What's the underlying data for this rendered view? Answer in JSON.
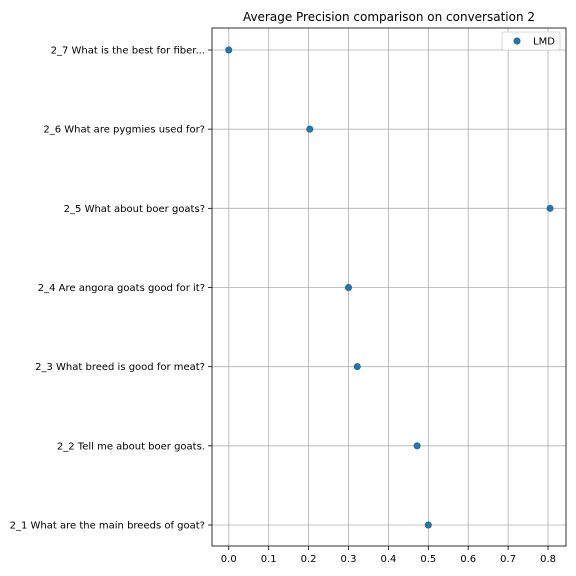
{
  "chart_data": {
    "type": "scatter",
    "title": "Average Precision comparison on conversation 2",
    "xlabel": "",
    "ylabel": "",
    "xlim": [
      -0.042,
      0.845
    ],
    "xticks": [
      0.0,
      0.1,
      0.2,
      0.3,
      0.4,
      0.5,
      0.6,
      0.7,
      0.8
    ],
    "xtick_labels": [
      "0.0",
      "0.1",
      "0.2",
      "0.3",
      "0.4",
      "0.5",
      "0.6",
      "0.7",
      "0.8"
    ],
    "categories": [
      "2_1 What are the main breeds of goat?",
      "2_2 Tell me about boer goats.",
      "2_3 What breed is good for meat?",
      "2_4 Are angora goats good for it?",
      "2_5 What about boer goats?",
      "2_6 What are pygmies used for?",
      "2_7 What is the best for fiber..."
    ],
    "series": [
      {
        "name": "LMD",
        "color": "#1f77b4",
        "values": [
          0.5,
          0.472,
          0.322,
          0.3,
          0.805,
          0.203,
          0.0
        ]
      }
    ],
    "grid": true,
    "legend": "top-right"
  }
}
